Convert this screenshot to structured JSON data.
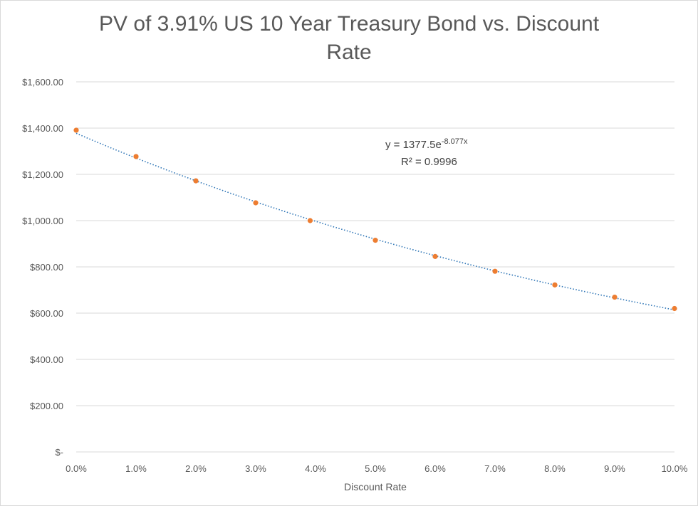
{
  "chart_data": {
    "type": "scatter",
    "title_lines": [
      "PV of 3.91% US 10 Year Treasury Bond vs. Discount",
      "Rate"
    ],
    "xlabel": "Discount Rate",
    "ylabel": "",
    "x": [
      0.0,
      0.01,
      0.02,
      0.03,
      0.0391,
      0.05,
      0.06,
      0.07,
      0.08,
      0.09,
      0.1
    ],
    "series": [
      {
        "values": [
          1391,
          1277,
          1172,
          1077,
          1000,
          915,
          845,
          781,
          722,
          669,
          620
        ],
        "color": "#ed7d31"
      }
    ],
    "trendline": {
      "type": "exponential",
      "a": 1377.5,
      "b": -8.077,
      "color": "#2e75b6",
      "style": "dotted",
      "equation_prefix": "y = 1377.5e",
      "equation_exponent": "-8.077x",
      "r_squared": "R² = 0.9996"
    },
    "xlim": [
      0,
      0.1
    ],
    "ylim": [
      0,
      1600
    ],
    "x_ticks": [
      {
        "value": 0.0,
        "label": "0.0%"
      },
      {
        "value": 0.01,
        "label": "1.0%"
      },
      {
        "value": 0.02,
        "label": "2.0%"
      },
      {
        "value": 0.03,
        "label": "3.0%"
      },
      {
        "value": 0.04,
        "label": "4.0%"
      },
      {
        "value": 0.05,
        "label": "5.0%"
      },
      {
        "value": 0.06,
        "label": "6.0%"
      },
      {
        "value": 0.07,
        "label": "7.0%"
      },
      {
        "value": 0.08,
        "label": "8.0%"
      },
      {
        "value": 0.09,
        "label": "9.0%"
      },
      {
        "value": 0.1,
        "label": "10.0%"
      }
    ],
    "y_ticks": [
      {
        "value": 0,
        "label": "$-"
      },
      {
        "value": 200,
        "label": "$200.00"
      },
      {
        "value": 400,
        "label": "$400.00"
      },
      {
        "value": 600,
        "label": "$600.00"
      },
      {
        "value": 800,
        "label": "$800.00"
      },
      {
        "value": 1000,
        "label": "$1,000.00"
      },
      {
        "value": 1200,
        "label": "$1,200.00"
      },
      {
        "value": 1400,
        "label": "$1,400.00"
      },
      {
        "value": 1600,
        "label": "$1,600.00"
      }
    ],
    "grid": "horizontal",
    "legend": "none"
  }
}
